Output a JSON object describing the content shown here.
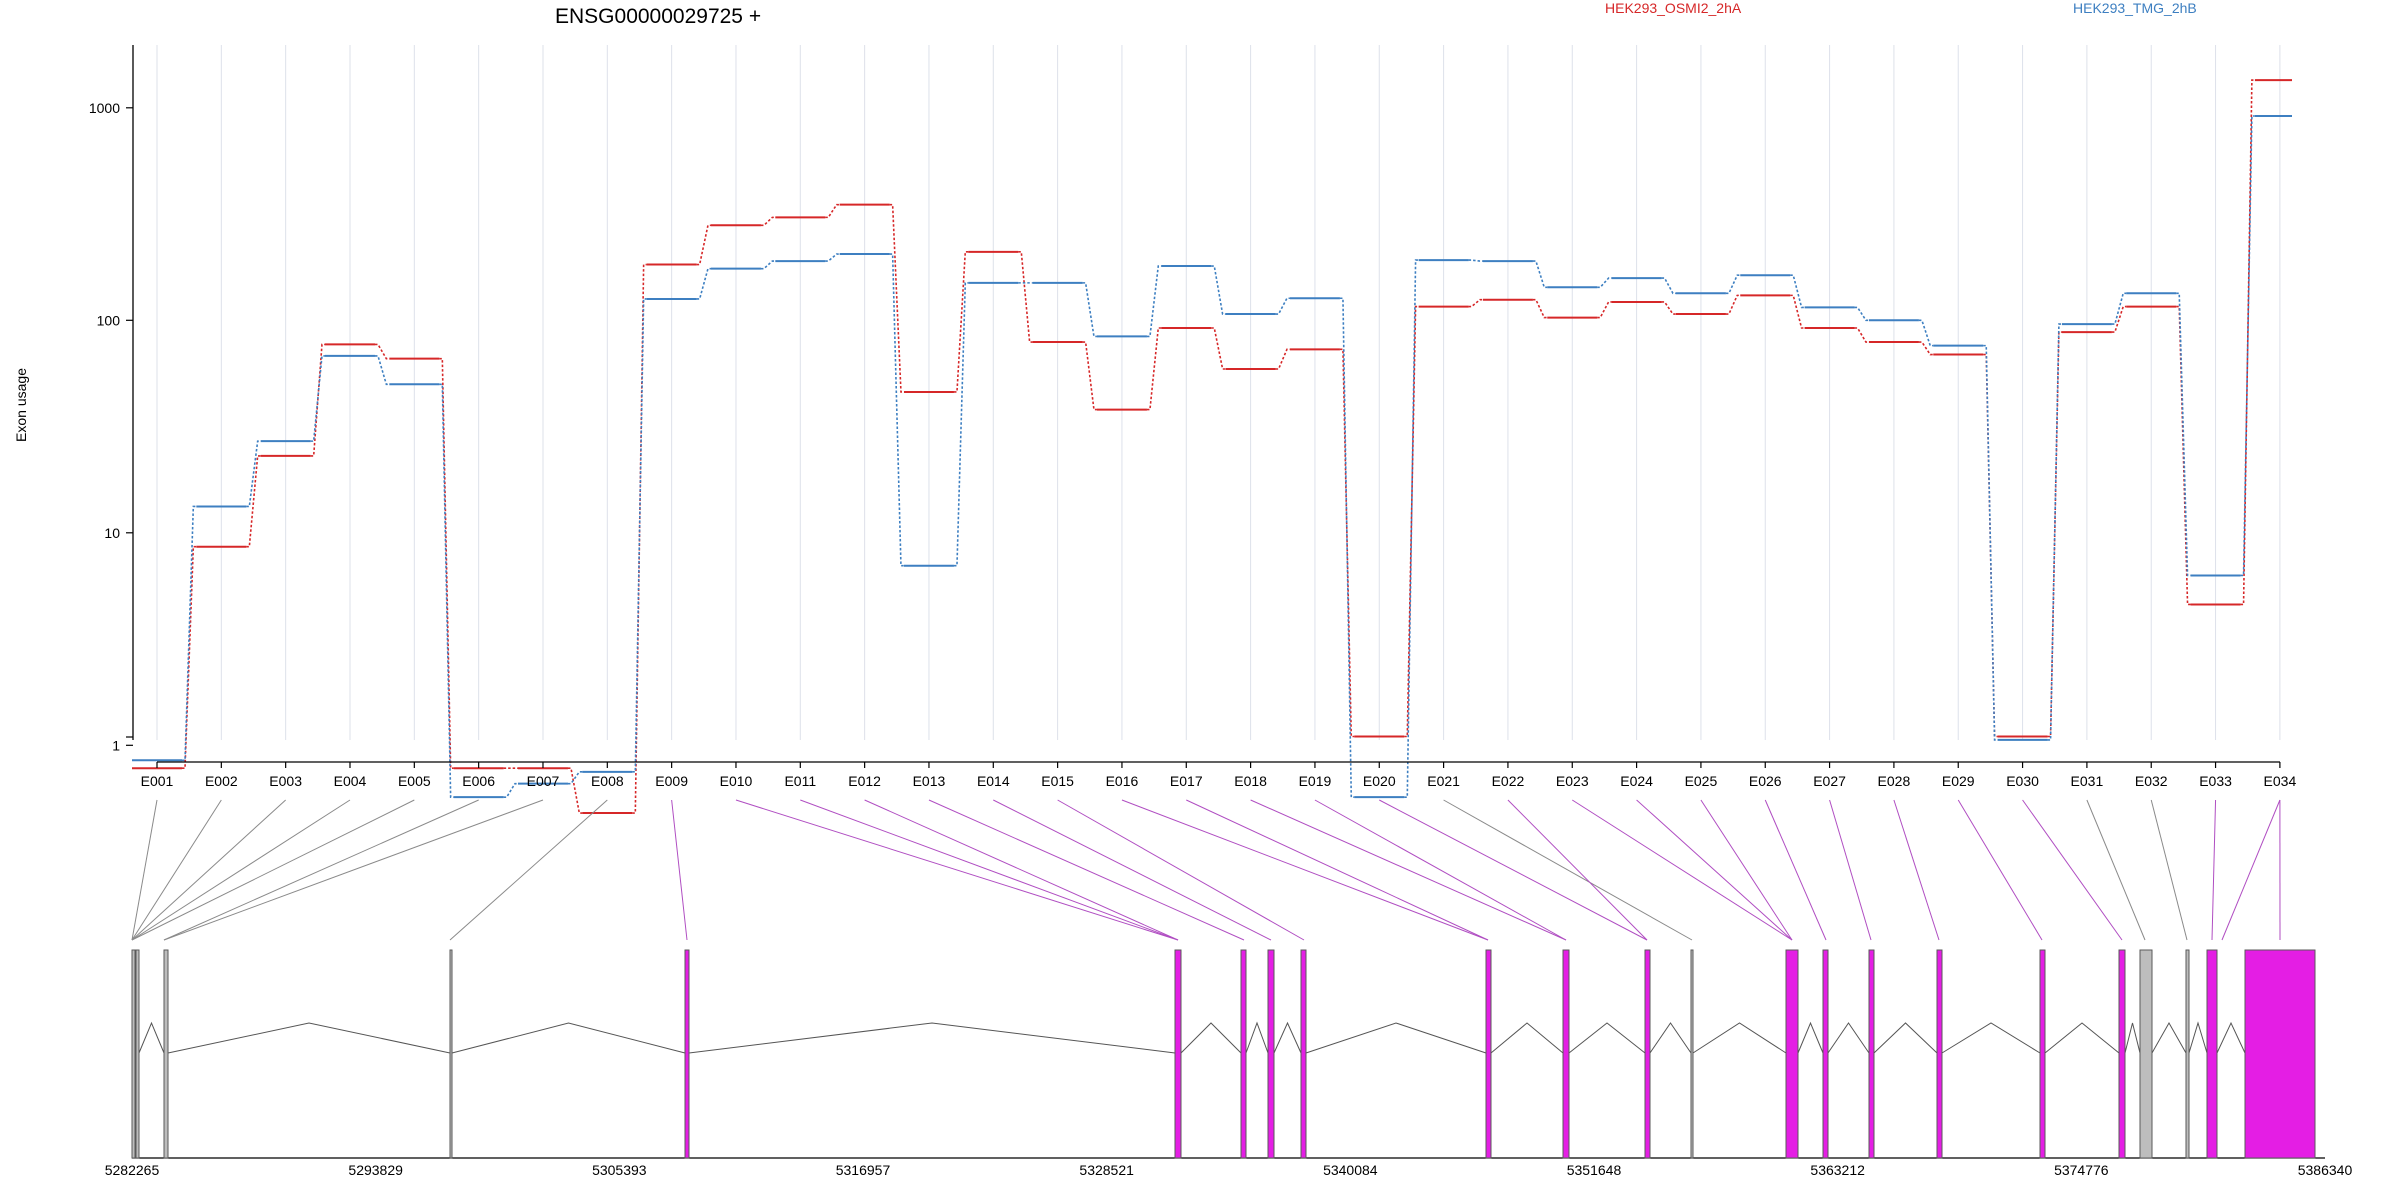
{
  "chart_data": {
    "type": "line",
    "title": "ENSG00000029725 +",
    "ylabel": "Exon usage",
    "y_scale": "log",
    "yticks": [
      1,
      10,
      100,
      1000
    ],
    "y_range": [
      0.45,
      2000
    ],
    "categories": [
      "E001",
      "E002",
      "E003",
      "E004",
      "E005",
      "E006",
      "E007",
      "E008",
      "E009",
      "E010",
      "E011",
      "E012",
      "E013",
      "E014",
      "E015",
      "E016",
      "E017",
      "E018",
      "E019",
      "E020",
      "E021",
      "E022",
      "E023",
      "E024",
      "E025",
      "E026",
      "E027",
      "E028",
      "E029",
      "E030",
      "E031",
      "E032",
      "E033",
      "E034"
    ],
    "series": [
      {
        "name": "HEK293_OSMI2_2hA",
        "color": "#d62728",
        "values": [
          0.78,
          8.6,
          23,
          77,
          66,
          0.78,
          0.78,
          0.48,
          183,
          280,
          305,
          350,
          46,
          210,
          79,
          38,
          92,
          59,
          73,
          1.1,
          116,
          125,
          103,
          122,
          107,
          131,
          92,
          79,
          69,
          1.1,
          88,
          116,
          4.6,
          1350
        ]
      },
      {
        "name": "HEK293_TMG_2hB",
        "color": "#3d7fc1",
        "values": [
          0.85,
          13.3,
          27,
          68,
          50,
          0.57,
          0.66,
          0.75,
          126,
          175,
          190,
          205,
          7,
          150,
          150,
          84,
          180,
          107,
          127,
          0.57,
          192,
          190,
          143,
          158,
          134,
          163,
          115,
          100,
          76,
          1.06,
          96,
          134,
          6.3,
          915
        ]
      }
    ],
    "grid": "vertical",
    "genome_track": {
      "ticks": [
        "5282265",
        "5293829",
        "5305393",
        "5316957",
        "5328521",
        "5340084",
        "5351648",
        "5363212",
        "5374776",
        "5386340"
      ],
      "colors": {
        "significant": "#e41ee4",
        "not_significant": "#bdbdbd",
        "outline": "#5a5a5a"
      }
    }
  }
}
